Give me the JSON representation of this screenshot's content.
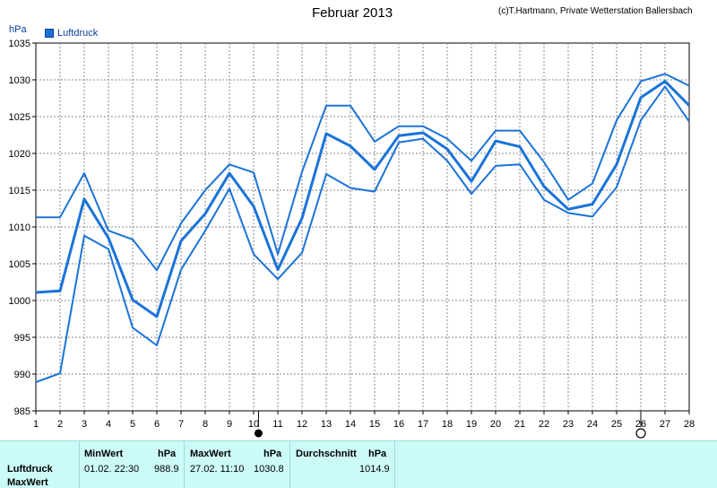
{
  "header": {
    "title": "Februar 2013",
    "credit": "(c)T.Hartmann, Private Wetterstation Ballersbach",
    "unit": "hPa",
    "legend_label": "Luftdruck"
  },
  "colors": {
    "line": "#1a73d9",
    "grid": "#888888",
    "frame": "#000000",
    "stats_bg": "#ccfbf7"
  },
  "chart_data": {
    "type": "line",
    "title": "Februar 2013",
    "ylabel": "hPa",
    "ylim": [
      985,
      1035
    ],
    "yticks": [
      985,
      990,
      995,
      1000,
      1005,
      1010,
      1015,
      1020,
      1025,
      1030,
      1035
    ],
    "x": [
      1,
      2,
      3,
      4,
      5,
      6,
      7,
      8,
      9,
      10,
      11,
      12,
      13,
      14,
      15,
      16,
      17,
      18,
      19,
      20,
      21,
      22,
      23,
      24,
      25,
      26,
      27,
      28
    ],
    "grid": true,
    "series": [
      {
        "role": "max",
        "values": [
          1011.3,
          1011.3,
          1017.3,
          1009.5,
          1008.3,
          1004.1,
          1010.5,
          1015.0,
          1018.5,
          1017.4,
          1006.3,
          1017.5,
          1026.5,
          1026.5,
          1021.6,
          1023.7,
          1023.7,
          1022.0,
          1019.0,
          1023.1,
          1023.1,
          1018.8,
          1013.7,
          1015.9,
          1024.5,
          1029.8,
          1030.8,
          1029.2
        ]
      },
      {
        "role": "mean",
        "values": [
          1001.1,
          1001.3,
          1013.8,
          1008.5,
          1000.1,
          997.8,
          1008.1,
          1011.8,
          1017.3,
          1012.8,
          1004.2,
          1011.2,
          1022.7,
          1021.0,
          1017.8,
          1022.4,
          1022.8,
          1020.6,
          1016.2,
          1021.7,
          1020.9,
          1015.5,
          1012.4,
          1013.1,
          1018.5,
          1027.6,
          1029.8,
          1026.5
        ]
      },
      {
        "role": "min",
        "values": [
          988.9,
          990.1,
          1008.8,
          1007.0,
          996.3,
          993.9,
          1004.2,
          1009.5,
          1015.2,
          1006.3,
          1002.9,
          1006.5,
          1017.2,
          1015.3,
          1014.8,
          1021.5,
          1022.0,
          1019.0,
          1014.5,
          1018.3,
          1018.5,
          1013.7,
          1011.9,
          1011.4,
          1015.4,
          1024.5,
          1029.1,
          1024.3
        ]
      }
    ],
    "markers": [
      {
        "x": 10.2,
        "symbol": "filled-circle"
      },
      {
        "x": 26,
        "symbol": "open-circle"
      }
    ]
  },
  "stats": {
    "headers": {
      "min": "MinWert",
      "max": "MaxWert",
      "avg": "Durchschnitt",
      "unit": "hPa"
    },
    "row_label": "Luftdruck",
    "row_label_2": "MaxWert",
    "min_time": "01.02.  22:30",
    "min_value": "988.9",
    "max_time": "27.02.  11:10",
    "max_value": "1030.8",
    "avg_value": "1014.9"
  }
}
